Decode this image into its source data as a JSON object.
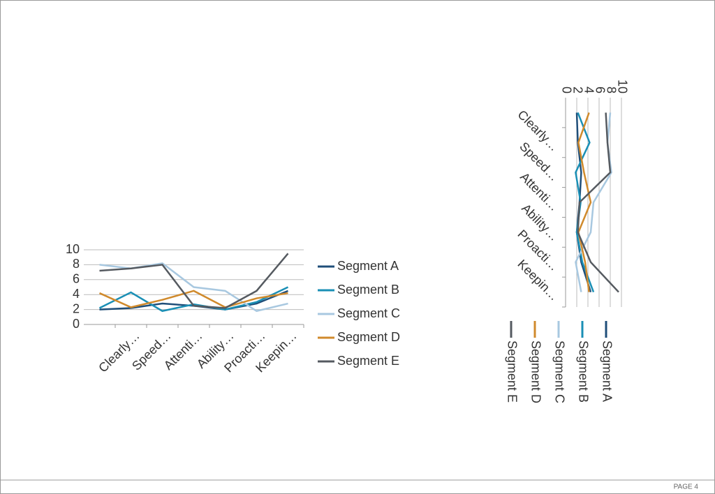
{
  "chart_data": [
    {
      "type": "line",
      "categories": [
        null,
        "Clearly…",
        "Speed…",
        "Attenti…",
        "Ability…",
        "Proacti…",
        "Keepin…"
      ],
      "series": [
        {
          "name": "Segment A",
          "color": "#1f4e79",
          "values": [
            2.0,
            2.2,
            2.8,
            2.5,
            2.0,
            2.8,
            4.5
          ]
        },
        {
          "name": "Segment B",
          "color": "#1a8fb5",
          "values": [
            2.2,
            4.3,
            1.8,
            2.7,
            2.0,
            3.0,
            5.0
          ]
        },
        {
          "name": "Segment C",
          "color": "#a8c8e0",
          "values": [
            8.0,
            7.5,
            8.2,
            5.0,
            4.5,
            1.8,
            2.8
          ]
        },
        {
          "name": "Segment D",
          "color": "#d08a2c",
          "values": [
            4.2,
            2.3,
            3.3,
            4.5,
            2.3,
            3.5,
            4.2
          ]
        },
        {
          "name": "Segment E",
          "color": "#555a60",
          "values": [
            7.2,
            7.5,
            8.0,
            2.5,
            2.2,
            4.5,
            9.5
          ]
        }
      ],
      "ylim": [
        0,
        10
      ],
      "yticks": [
        0,
        2,
        4,
        6,
        8,
        10
      ],
      "grid": true,
      "legend": "right",
      "orientation": "vertical"
    },
    {
      "type": "line",
      "categories": [
        null,
        "Clearly…",
        "Speed…",
        "Attenti…",
        "Ability…",
        "Proacti…",
        "Keepin…"
      ],
      "series": [
        {
          "name": "Segment A",
          "color": "#1f4e79",
          "values": [
            2.0,
            2.2,
            2.8,
            2.5,
            2.0,
            2.8,
            4.5
          ]
        },
        {
          "name": "Segment B",
          "color": "#1a8fb5",
          "values": [
            2.2,
            4.3,
            1.8,
            2.7,
            2.0,
            3.0,
            5.0
          ]
        },
        {
          "name": "Segment C",
          "color": "#a8c8e0",
          "values": [
            8.0,
            7.5,
            8.2,
            5.0,
            4.5,
            1.8,
            2.8
          ]
        },
        {
          "name": "Segment D",
          "color": "#d08a2c",
          "values": [
            4.2,
            2.3,
            3.3,
            4.5,
            2.3,
            3.5,
            4.2
          ]
        },
        {
          "name": "Segment E",
          "color": "#555a60",
          "values": [
            7.2,
            7.5,
            8.0,
            2.5,
            2.2,
            4.5,
            9.5
          ]
        }
      ],
      "ylim": [
        0,
        10
      ],
      "yticks": [
        0,
        2,
        4,
        6,
        8,
        10
      ],
      "grid": true,
      "legend": "bottom",
      "orientation": "rotated"
    }
  ],
  "footer": {
    "page": "PAGE 4"
  }
}
